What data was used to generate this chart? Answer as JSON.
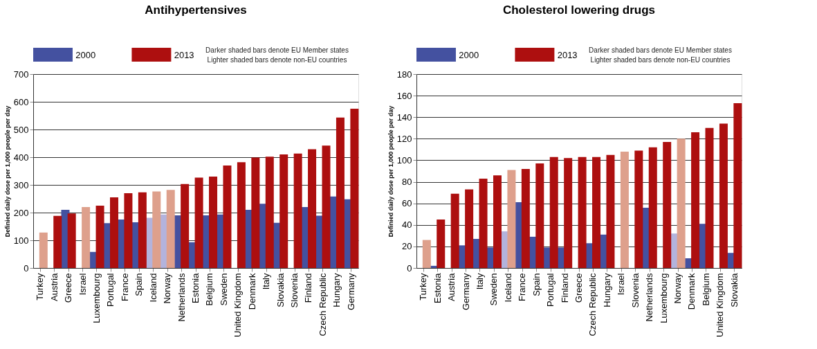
{
  "chart_data": [
    {
      "type": "bar",
      "title": "Antihypertensives",
      "ylabel": "Definied daily dose per 1,000 people per day",
      "annotations": [
        "Darker shaded bars denote EU Member states",
        "Lighter shaded bars denote non-EU countries"
      ],
      "categories": [
        "Turkey",
        "Austria",
        "Greece",
        "Israel",
        "Luxembourg",
        "Portugal",
        "France",
        "Spain",
        "Iceland",
        "Norway",
        "Netherlands",
        "Estonia",
        "Belgium",
        "Sweden",
        "United Kingdom",
        "Denmark",
        "Italy",
        "Slovakia",
        "Slovenia",
        "Finland",
        "Czech Republic",
        "Hungary",
        "Germany"
      ],
      "series": [
        {
          "name": "2000",
          "color": "#4451a0",
          "colors": [
            "#4451a0",
            "#4451a0",
            "#4451a0",
            "#4451a0",
            "#4451a0",
            "#4451a0",
            "#4451a0",
            "#4451a0",
            "#b3b3dc",
            "#b3b3dc",
            "#4451a0",
            "#4451a0",
            "#4451a0",
            "#4451a0",
            "#4451a0",
            "#4451a0",
            "#4451a0",
            "#4451a0",
            "#4451a0",
            "#4451a0",
            "#4451a0",
            "#4451a0",
            "#4451a0"
          ],
          "values": [
            null,
            null,
            210,
            null,
            58,
            162,
            175,
            165,
            181,
            193,
            190,
            93,
            190,
            193,
            null,
            210,
            232,
            163,
            null,
            220,
            189,
            258,
            248
          ]
        },
        {
          "name": "2013",
          "color": "#ad0f0f",
          "colors": [
            "#dea08c",
            "#ad0f0f",
            "#ad0f0f",
            "#dea08c",
            "#ad0f0f",
            "#ad0f0f",
            "#ad0f0f",
            "#ad0f0f",
            "#dea08c",
            "#dea08c",
            "#ad0f0f",
            "#ad0f0f",
            "#ad0f0f",
            "#ad0f0f",
            "#ad0f0f",
            "#ad0f0f",
            "#ad0f0f",
            "#ad0f0f",
            "#ad0f0f",
            "#ad0f0f",
            "#ad0f0f",
            "#ad0f0f",
            "#ad0f0f"
          ],
          "values": [
            128,
            188,
            197,
            220,
            225,
            255,
            270,
            273,
            276,
            282,
            303,
            326,
            330,
            370,
            382,
            399,
            402,
            410,
            413,
            429,
            442,
            543,
            575
          ]
        }
      ],
      "ylim": [
        0,
        700
      ],
      "yticks": [
        0,
        100,
        200,
        300,
        400,
        500,
        600,
        700
      ],
      "grid": "y",
      "legend": "top"
    },
    {
      "type": "bar",
      "title": "Cholesterol  lowering drugs",
      "ylabel": "Definied daily dose per 1,000 people per day",
      "annotations": [
        "Darker shaded bars denote EU Member states",
        "Lighter shaded bars denote non-EU countries"
      ],
      "categories": [
        "Turkey",
        "Estonia",
        "Austria",
        "Germany",
        "Italy",
        "Sweden",
        "Iceland",
        "France",
        "Spain",
        "Portugal",
        "Finland",
        "Greece",
        "Czech Republic",
        "Hungary",
        "Israel",
        "Slovenia",
        "Netherlands",
        "Luxembourg",
        "Norway",
        "Denmark",
        "Belgium",
        "United Kingdom",
        "Slovakia"
      ],
      "series": [
        {
          "name": "2000",
          "color": "#4451a0",
          "colors": [
            "#4451a0",
            "#4451a0",
            "#4451a0",
            "#4451a0",
            "#4451a0",
            "#4451a0",
            "#b3b3dc",
            "#4451a0",
            "#4451a0",
            "#4451a0",
            "#4451a0",
            "#4451a0",
            "#4451a0",
            "#4451a0",
            "#4451a0",
            "#4451a0",
            "#4451a0",
            "#4451a0",
            "#b3b3dc",
            "#4451a0",
            "#4451a0",
            "#4451a0",
            "#4451a0"
          ],
          "values": [
            null,
            2,
            null,
            21,
            27,
            19,
            34,
            61,
            29,
            19,
            19,
            null,
            23,
            31,
            null,
            null,
            56,
            null,
            32,
            9,
            41,
            null,
            14
          ]
        },
        {
          "name": "2013",
          "color": "#ad0f0f",
          "colors": [
            "#dea08c",
            "#ad0f0f",
            "#ad0f0f",
            "#ad0f0f",
            "#ad0f0f",
            "#ad0f0f",
            "#dea08c",
            "#ad0f0f",
            "#ad0f0f",
            "#ad0f0f",
            "#ad0f0f",
            "#ad0f0f",
            "#ad0f0f",
            "#ad0f0f",
            "#dea08c",
            "#ad0f0f",
            "#ad0f0f",
            "#ad0f0f",
            "#dea08c",
            "#ad0f0f",
            "#ad0f0f",
            "#ad0f0f",
            "#ad0f0f"
          ],
          "values": [
            26,
            45,
            69,
            73,
            83,
            86,
            91,
            92,
            97,
            103,
            102,
            103,
            103,
            105,
            108,
            109,
            112,
            117,
            120,
            126,
            130,
            134,
            153
          ]
        }
      ],
      "ylim": [
        0,
        180
      ],
      "yticks": [
        0,
        20,
        40,
        60,
        80,
        100,
        120,
        140,
        160,
        180
      ],
      "grid": "y",
      "legend": "top"
    }
  ]
}
